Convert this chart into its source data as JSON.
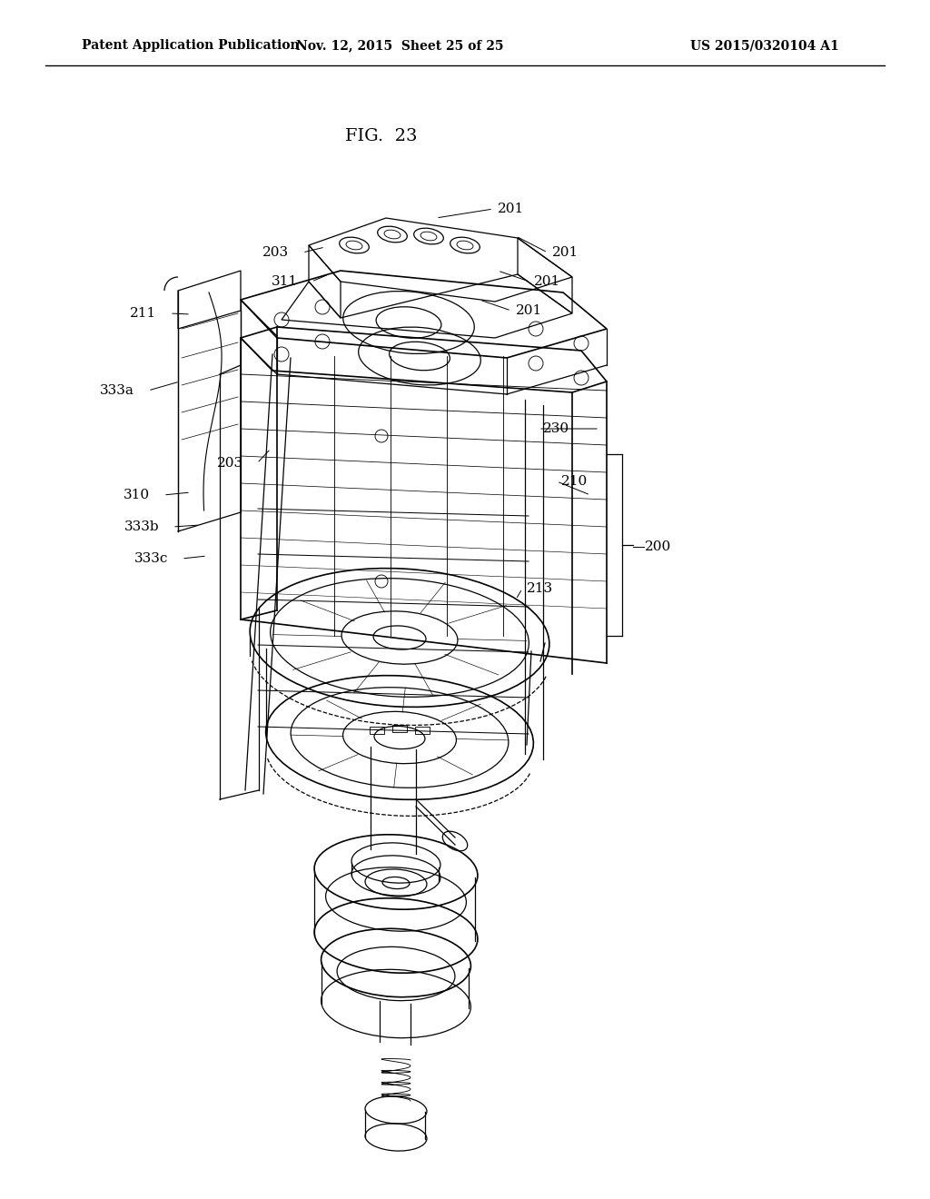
{
  "background_color": "#ffffff",
  "title": "FIG.  23",
  "header_left": "Patent Application Publication",
  "header_center": "Nov. 12, 2015  Sheet 25 of 25",
  "header_right": "US 2015/0320104 A1",
  "header_fontsize": 10,
  "title_fontsize": 14
}
